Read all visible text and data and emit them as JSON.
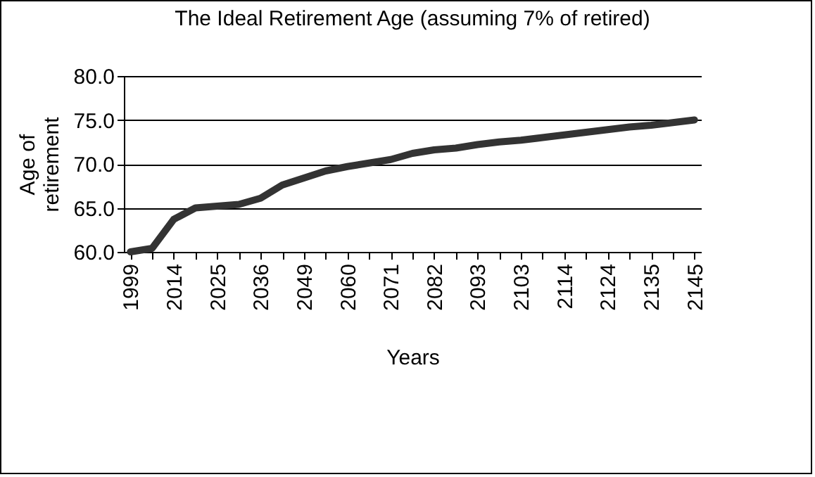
{
  "chart_data": {
    "type": "line",
    "title": "The Ideal Retirement Age (assuming 7% of retired)",
    "xlabel": "Years",
    "ylabel": "Age of retirement",
    "categories": [
      "1999",
      null,
      "2014",
      null,
      "2025",
      null,
      "2036",
      null,
      "2049",
      null,
      "2060",
      null,
      "2071",
      null,
      "2082",
      null,
      "2093",
      null,
      "2103",
      null,
      "2114",
      null,
      "2124",
      null,
      "2135",
      null,
      "2145"
    ],
    "series": [
      {
        "color": "#333333",
        "values": [
          60.0,
          60.4,
          63.7,
          65.0,
          65.2,
          65.4,
          66.1,
          67.6,
          68.4,
          69.2,
          69.7,
          70.1,
          70.5,
          71.2,
          71.6,
          71.8,
          72.2,
          72.5,
          72.7,
          73.0,
          73.3,
          73.6,
          73.9,
          74.2,
          74.4,
          74.7,
          75.0
        ]
      }
    ],
    "ylim": [
      60,
      80
    ],
    "yticks": [
      {
        "value": 60,
        "label": "60.0"
      },
      {
        "value": 65,
        "label": "65.0"
      },
      {
        "value": 70,
        "label": "70.0"
      },
      {
        "value": 75,
        "label": "75.0"
      },
      {
        "value": 80,
        "label": "80.0"
      }
    ],
    "grid": "y",
    "legend": false,
    "marker": "none",
    "line_style": "solid"
  }
}
